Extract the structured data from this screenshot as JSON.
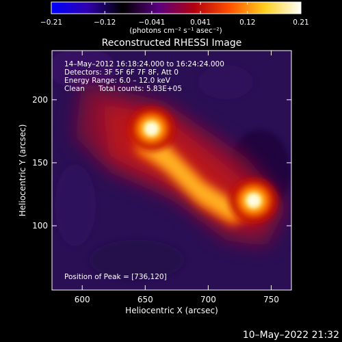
{
  "chart_data": {
    "type": "heatmap",
    "title": "Reconstructed RHESSI Image",
    "xlabel": "Heliocentric X (arcsec)",
    "ylabel": "Heliocentric Y (arcsec)",
    "xlim": [
      576,
      766
    ],
    "ylim": [
      49,
      239
    ],
    "x_ticks": [
      600,
      650,
      700,
      750
    ],
    "y_ticks": [
      100,
      150,
      200
    ],
    "colorbar": {
      "label": "(photons cm⁻² s⁻¹ asec⁻²)",
      "range": [
        -0.21,
        0.21
      ],
      "ticks": [
        -0.21,
        -0.12,
        -0.041,
        0.041,
        0.12,
        0.21
      ],
      "tick_labels": [
        "−0.21",
        "−0.12",
        "−0.041",
        "0.041",
        "0.12",
        "0.21"
      ],
      "colormap": [
        "#0000ff",
        "#3000b0",
        "#000000",
        "#5a0080",
        "#b00010",
        "#ff5000",
        "#ffd020",
        "#ffffff"
      ]
    },
    "annotations": {
      "time_range": "14–May–2012 16:18:24.000 to 16:24:24.000",
      "detectors": "Detectors: 3F 5F 6F 7F 8F, Att 0",
      "energy": "Energy Range: 6.0 – 12.0 keV",
      "method": "Clean",
      "counts": "Total counts: 5.83E+05",
      "peak": "Position of Peak = [736,120]"
    },
    "sources": [
      {
        "x": 655,
        "y": 177,
        "peak": 0.2
      },
      {
        "x": 736,
        "y": 120,
        "peak": 0.21
      }
    ],
    "peak_position": [
      736,
      120
    ]
  },
  "footer": {
    "date": "10–May–2022 21:32"
  }
}
